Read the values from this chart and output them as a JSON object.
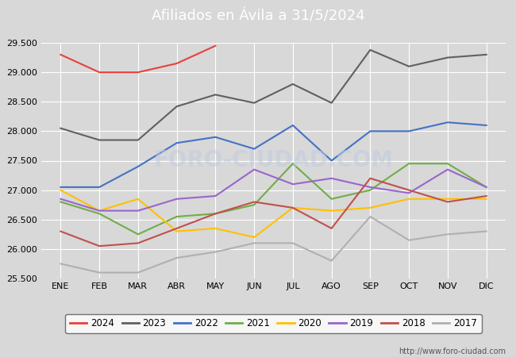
{
  "title": "Afiliados en Ávila a 31/5/2024",
  "title_bg_color": "#4a86c8",
  "title_text_color": "white",
  "ylim": [
    25500,
    29500
  ],
  "yticks": [
    25500,
    26000,
    26500,
    27000,
    27500,
    28000,
    28500,
    29000,
    29500
  ],
  "months": [
    "ENE",
    "FEB",
    "MAR",
    "ABR",
    "MAY",
    "JUN",
    "JUL",
    "AGO",
    "SEP",
    "OCT",
    "NOV",
    "DIC"
  ],
  "watermark_url": "http://www.foro-ciudad.com",
  "watermark_text": "FORO-CIUDAD.COM",
  "series": [
    {
      "label": "2024",
      "color": "#e8413c",
      "linewidth": 1.5,
      "data": [
        29300,
        29000,
        29000,
        29150,
        29450,
        null,
        null,
        null,
        null,
        null,
        null,
        null
      ]
    },
    {
      "label": "2023",
      "color": "#606060",
      "linewidth": 1.5,
      "data": [
        28050,
        27850,
        27850,
        28420,
        28620,
        28480,
        28800,
        28480,
        29380,
        29100,
        29250,
        29300
      ]
    },
    {
      "label": "2022",
      "color": "#4472c4",
      "linewidth": 1.5,
      "data": [
        27050,
        27050,
        27400,
        27800,
        27900,
        27700,
        28100,
        27500,
        28000,
        28000,
        28150,
        28100
      ]
    },
    {
      "label": "2021",
      "color": "#70ad47",
      "linewidth": 1.5,
      "data": [
        26800,
        26600,
        26250,
        26550,
        26600,
        26750,
        27450,
        26850,
        27000,
        27450,
        27450,
        27050
      ]
    },
    {
      "label": "2020",
      "color": "#ffc000",
      "linewidth": 1.5,
      "data": [
        27000,
        26650,
        26850,
        26300,
        26350,
        26200,
        26700,
        26650,
        26700,
        26850,
        26850,
        26850
      ]
    },
    {
      "label": "2019",
      "color": "#9966cc",
      "linewidth": 1.5,
      "data": [
        26850,
        26650,
        26650,
        26850,
        26900,
        27350,
        27100,
        27200,
        27050,
        26950,
        27350,
        27050
      ]
    },
    {
      "label": "2018",
      "color": "#c0504d",
      "linewidth": 1.5,
      "data": [
        26300,
        26050,
        26100,
        26350,
        26600,
        26800,
        26700,
        26350,
        27200,
        27000,
        26800,
        26900
      ]
    },
    {
      "label": "2017",
      "color": "#b0b0b0",
      "linewidth": 1.5,
      "data": [
        25750,
        25600,
        25600,
        25850,
        25950,
        26100,
        26100,
        25800,
        26550,
        26150,
        26250,
        26300
      ]
    }
  ],
  "plot_bg_color": "#d8d8d8",
  "fig_bg_color": "#d8d8d8",
  "grid_color": "white",
  "legend_fontsize": 8.5,
  "tick_fontsize": 8,
  "title_fontsize": 13
}
